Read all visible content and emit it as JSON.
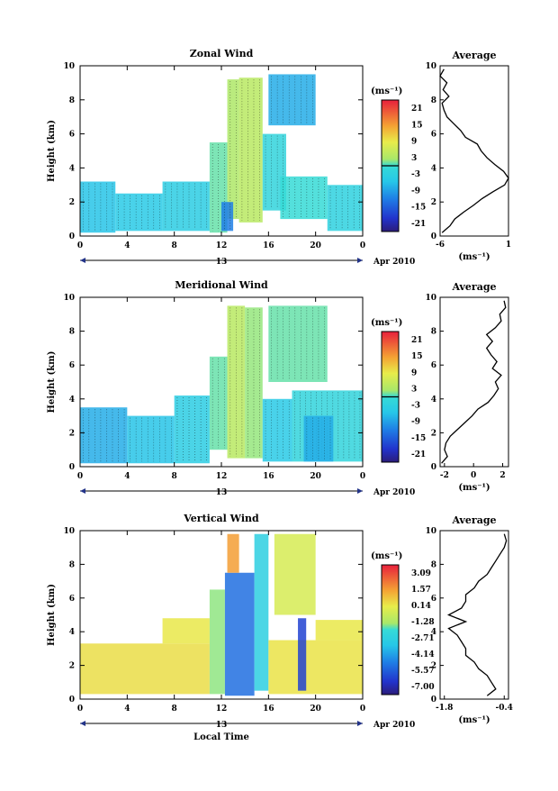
{
  "chart_data": [
    {
      "type": "heatmap",
      "title": "Zonal Wind",
      "ylabel": "Height (km)",
      "xticks": [
        "0",
        "4",
        "8",
        "12",
        "16",
        "20",
        "0"
      ],
      "yticks": [
        "0",
        "2",
        "4",
        "6",
        "8",
        "10"
      ],
      "xlim": [
        0,
        24
      ],
      "ylim": [
        0,
        10
      ],
      "date_day": "13",
      "date_label": "Apr 2010",
      "colorbar_unit": "(ms⁻¹)",
      "colorbar_ticks": [
        "21",
        "15",
        "9",
        "3",
        "-3",
        "-9",
        "-15",
        "-21"
      ],
      "colorbar_range": [
        -24,
        24
      ],
      "features": [
        {
          "x": [
            0,
            3
          ],
          "y": [
            0.2,
            3.2
          ],
          "value": -6
        },
        {
          "x": [
            3,
            7
          ],
          "y": [
            0.3,
            2.5
          ],
          "value": -5
        },
        {
          "x": [
            7,
            11
          ],
          "y": [
            0.3,
            3.2
          ],
          "value": -4
        },
        {
          "x": [
            11,
            12.5
          ],
          "y": [
            0.2,
            5.5
          ],
          "value": 1
        },
        {
          "x": [
            12.5,
            13.5
          ],
          "y": [
            1.0,
            9.2
          ],
          "value": 3
        },
        {
          "x": [
            13.5,
            15.5
          ],
          "y": [
            0.8,
            9.3
          ],
          "value": 4
        },
        {
          "x": [
            15.5,
            17.5
          ],
          "y": [
            1.5,
            6.0
          ],
          "value": -2
        },
        {
          "x": [
            17,
            21
          ],
          "y": [
            1.0,
            3.5
          ],
          "value": 0
        },
        {
          "x": [
            21,
            24
          ],
          "y": [
            0.3,
            3.0
          ],
          "value": -3
        },
        {
          "x": [
            16,
            20
          ],
          "y": [
            6.5,
            9.5
          ],
          "value": -8
        },
        {
          "x": [
            12,
            13
          ],
          "y": [
            0.3,
            2.0
          ],
          "value": -12
        }
      ],
      "average": {
        "title": "Average",
        "xticks": [
          "-6",
          "1"
        ],
        "xlim": [
          -6,
          1
        ],
        "xlabel": "(ms⁻¹)",
        "height": [
          0.2,
          0.6,
          1.0,
          1.4,
          1.8,
          2.2,
          2.6,
          3.0,
          3.4,
          3.8,
          4.2,
          4.6,
          5.0,
          5.4,
          5.8,
          6.2,
          6.6,
          7.0,
          7.4,
          7.8,
          8.2,
          8.6,
          9.0,
          9.4,
          9.8
        ],
        "value": [
          -5.8,
          -5.0,
          -4.5,
          -3.6,
          -2.6,
          -1.7,
          -0.6,
          0.6,
          1.0,
          0.5,
          -0.4,
          -1.2,
          -1.8,
          -2.2,
          -3.4,
          -3.9,
          -4.6,
          -5.3,
          -5.6,
          -5.8,
          -5.1,
          -5.7,
          -5.3,
          -6.0,
          -5.6
        ]
      }
    },
    {
      "type": "heatmap",
      "title": "Meridional Wind",
      "ylabel": "Height (km)",
      "xticks": [
        "0",
        "4",
        "8",
        "12",
        "16",
        "20",
        "0"
      ],
      "yticks": [
        "0",
        "2",
        "4",
        "6",
        "8",
        "10"
      ],
      "xlim": [
        0,
        24
      ],
      "ylim": [
        0,
        10
      ],
      "date_day": "13",
      "date_label": "Apr 2010",
      "colorbar_unit": "(ms⁻¹)",
      "colorbar_ticks": [
        "21",
        "15",
        "9",
        "3",
        "-3",
        "-9",
        "-15",
        "-21"
      ],
      "colorbar_range": [
        -24,
        24
      ],
      "features": [
        {
          "x": [
            0,
            4
          ],
          "y": [
            0.2,
            3.5
          ],
          "value": -8
        },
        {
          "x": [
            4,
            8
          ],
          "y": [
            0.2,
            3.0
          ],
          "value": -6
        },
        {
          "x": [
            8,
            11
          ],
          "y": [
            0.2,
            4.2
          ],
          "value": -4
        },
        {
          "x": [
            11,
            12.5
          ],
          "y": [
            1.0,
            6.5
          ],
          "value": 1
        },
        {
          "x": [
            12.5,
            14
          ],
          "y": [
            0.5,
            9.5
          ],
          "value": 4
        },
        {
          "x": [
            14,
            15.5
          ],
          "y": [
            0.5,
            9.4
          ],
          "value": 2
        },
        {
          "x": [
            15.5,
            18
          ],
          "y": [
            0.3,
            4.0
          ],
          "value": -5
        },
        {
          "x": [
            18,
            24
          ],
          "y": [
            0.3,
            4.5
          ],
          "value": -2
        },
        {
          "x": [
            16,
            21
          ],
          "y": [
            5.0,
            9.5
          ],
          "value": 1
        },
        {
          "x": [
            19,
            21.5
          ],
          "y": [
            0.3,
            3.0
          ],
          "value": -8
        }
      ],
      "average": {
        "title": "Average",
        "xticks": [
          "-2",
          "0",
          "2"
        ],
        "xlim": [
          -2.3,
          2.4
        ],
        "xlabel": "(ms⁻¹)",
        "height": [
          0.2,
          0.6,
          1.0,
          1.4,
          1.8,
          2.2,
          2.6,
          3.0,
          3.4,
          3.8,
          4.2,
          4.6,
          5.0,
          5.4,
          5.8,
          6.2,
          6.6,
          7.0,
          7.4,
          7.8,
          8.2,
          8.6,
          9.0,
          9.4,
          9.8
        ],
        "value": [
          -2.2,
          -1.8,
          -2.0,
          -1.9,
          -1.6,
          -1.1,
          -0.6,
          -0.1,
          0.3,
          1.0,
          1.4,
          1.7,
          1.5,
          1.9,
          1.3,
          1.6,
          1.2,
          0.9,
          1.3,
          0.9,
          1.5,
          1.9,
          1.8,
          2.2,
          2.1
        ]
      }
    },
    {
      "type": "heatmap",
      "title": "Vertical Wind",
      "ylabel": "Height (km)",
      "xlabel": "Local Time",
      "xticks": [
        "0",
        "4",
        "8",
        "12",
        "16",
        "20",
        "0"
      ],
      "yticks": [
        "0",
        "2",
        "4",
        "6",
        "8",
        "10"
      ],
      "xlim": [
        0,
        24
      ],
      "ylim": [
        0,
        10
      ],
      "date_day": "13",
      "date_label": "Apr 2010",
      "colorbar_unit": "(ms⁻¹)",
      "colorbar_ticks": [
        "3.09",
        "1.57",
        "0.14",
        "-1.28",
        "-2.71",
        "-4.14",
        "-5.57",
        "-7.00"
      ],
      "colorbar_range": [
        -7.7,
        3.8
      ],
      "features": [
        {
          "x": [
            0,
            11
          ],
          "y": [
            0.3,
            3.3
          ],
          "value": 0.4
        },
        {
          "x": [
            7,
            11
          ],
          "y": [
            3.3,
            4.8
          ],
          "value": 0.2
        },
        {
          "x": [
            11,
            12.3
          ],
          "y": [
            0.3,
            6.5
          ],
          "value": -1.5
        },
        {
          "x": [
            12.3,
            14.8
          ],
          "y": [
            0.2,
            7.5
          ],
          "value": -5.2
        },
        {
          "x": [
            12.5,
            13.5
          ],
          "y": [
            7.5,
            9.8
          ],
          "value": 1.6
        },
        {
          "x": [
            14.8,
            16
          ],
          "y": [
            0.5,
            9.8
          ],
          "value": -2.8
        },
        {
          "x": [
            16,
            24
          ],
          "y": [
            0.3,
            3.5
          ],
          "value": 0.3
        },
        {
          "x": [
            18.5,
            19.2
          ],
          "y": [
            0.5,
            4.8
          ],
          "value": -6.2
        },
        {
          "x": [
            16.5,
            20
          ],
          "y": [
            5.0,
            9.8
          ],
          "value": -0.3
        },
        {
          "x": [
            20,
            24
          ],
          "y": [
            3.5,
            4.7
          ],
          "value": 0.2
        }
      ],
      "average": {
        "title": "Average",
        "xticks": [
          "-1.8",
          "-0.4"
        ],
        "xlim": [
          -1.9,
          -0.3
        ],
        "xlabel": "(ms⁻¹)",
        "height": [
          0.2,
          0.6,
          1.0,
          1.4,
          1.8,
          2.2,
          2.6,
          3.0,
          3.4,
          3.8,
          4.2,
          4.6,
          5.0,
          5.4,
          5.8,
          6.2,
          6.6,
          7.0,
          7.4,
          7.8,
          8.2,
          8.6,
          9.0,
          9.4,
          9.8
        ],
        "value": [
          -0.8,
          -0.6,
          -0.7,
          -0.8,
          -1.0,
          -1.1,
          -1.3,
          -1.3,
          -1.4,
          -1.5,
          -1.7,
          -1.3,
          -1.7,
          -1.4,
          -1.3,
          -1.3,
          -1.1,
          -1.0,
          -0.8,
          -0.7,
          -0.6,
          -0.5,
          -0.4,
          -0.35,
          -0.4
        ]
      }
    }
  ]
}
